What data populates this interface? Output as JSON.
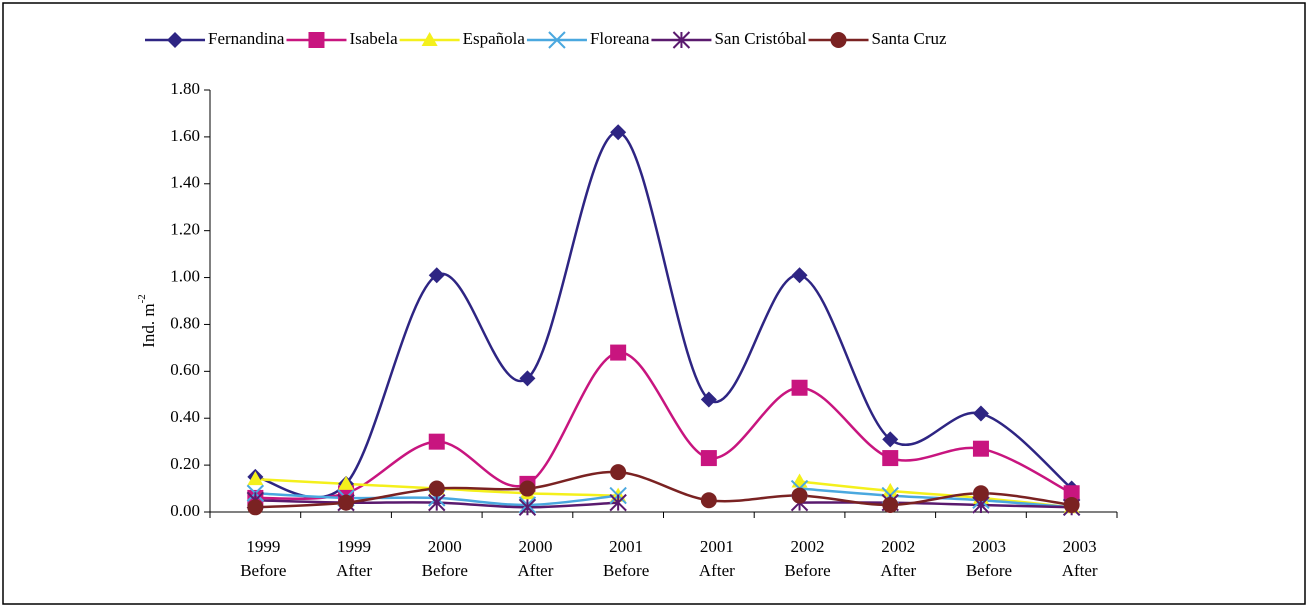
{
  "chart_data": {
    "type": "line",
    "categories": [
      [
        "1999",
        "Before"
      ],
      [
        "1999",
        "After"
      ],
      [
        "2000",
        "Before"
      ],
      [
        "2000",
        "After"
      ],
      [
        "2001",
        "Before"
      ],
      [
        "2001",
        "After"
      ],
      [
        "2002",
        "Before"
      ],
      [
        "2002",
        "After"
      ],
      [
        "2003",
        "Before"
      ],
      [
        "2003",
        "After"
      ]
    ],
    "ylabel": {
      "text": "Ind. m",
      "superscript": "-2"
    },
    "ylim": [
      0,
      1.8
    ],
    "yticks": [
      {
        "value": 0,
        "label": "0.00"
      },
      {
        "value": 0.2,
        "label": "0.20"
      },
      {
        "value": 0.4,
        "label": "0.40"
      },
      {
        "value": 0.6,
        "label": "0.60"
      },
      {
        "value": 0.8,
        "label": "0.80"
      },
      {
        "value": 1.0,
        "label": "1.00"
      },
      {
        "value": 1.2,
        "label": "1.20"
      },
      {
        "value": 1.4,
        "label": "1.40"
      },
      {
        "value": 1.6,
        "label": "1.60"
      },
      {
        "value": 1.8,
        "label": "1.80"
      }
    ],
    "smooth": true,
    "legend": "top",
    "series": [
      {
        "name": "Fernandina",
        "color": "#2e2583",
        "marker": "diamond",
        "values": [
          0.15,
          0.12,
          1.01,
          0.57,
          1.62,
          0.48,
          1.01,
          0.31,
          0.42,
          0.1
        ]
      },
      {
        "name": "Isabela",
        "color": "#c8157f",
        "marker": "square",
        "values": [
          0.06,
          0.08,
          0.3,
          0.12,
          0.68,
          0.23,
          0.53,
          0.23,
          0.27,
          0.08
        ]
      },
      {
        "name": "Española",
        "color": "#f4f01c",
        "marker": "triangle",
        "values": [
          0.14,
          0.12,
          0.1,
          0.08,
          0.07,
          null,
          0.13,
          0.09,
          0.06,
          0.02
        ]
      },
      {
        "name": "Floreana",
        "color": "#4aa8df",
        "marker": "x",
        "values": [
          0.08,
          0.06,
          0.06,
          0.03,
          0.07,
          null,
          0.1,
          0.07,
          0.05,
          0.02
        ]
      },
      {
        "name": "San Cristóbal",
        "color": "#5a1a6e",
        "marker": "asterisk",
        "values": [
          0.05,
          0.04,
          0.04,
          0.02,
          0.04,
          null,
          0.04,
          0.04,
          0.03,
          0.02
        ]
      },
      {
        "name": "Santa Cruz",
        "color": "#7a2222",
        "marker": "circle",
        "values": [
          0.02,
          0.04,
          0.1,
          0.1,
          0.17,
          0.05,
          0.07,
          0.03,
          0.08,
          0.03
        ]
      }
    ]
  }
}
